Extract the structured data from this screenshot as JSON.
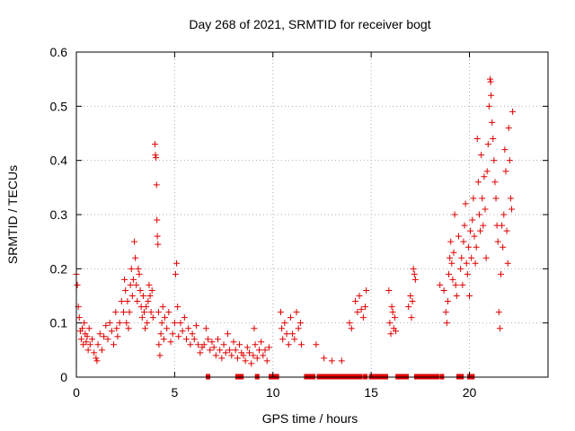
{
  "chart_data": {
    "type": "scatter",
    "title": "Day 268 of 2021, SRMTID for receiver bogt",
    "xlabel": "GPS time / hours",
    "ylabel": "SRMTID / TECUs",
    "xlim": [
      0,
      24
    ],
    "ylim": [
      0,
      0.6
    ],
    "xticks": [
      0,
      5,
      10,
      15,
      20
    ],
    "xtick_labels": [
      "0",
      "5",
      "10",
      "15",
      "20"
    ],
    "yticks": [
      0,
      0.1,
      0.2,
      0.3,
      0.4,
      0.5,
      0.6
    ],
    "ytick_labels": [
      "0",
      "0.1",
      "0.2",
      "0.3",
      "0.4",
      "0.5",
      "0.6"
    ],
    "grid": true,
    "marker": "plus",
    "color": "#e00000",
    "series": [
      {
        "name": "SRMTID",
        "points": [
          [
            0.0,
            0.19
          ],
          [
            0.05,
            0.17
          ],
          [
            0.1,
            0.13
          ],
          [
            0.15,
            0.11
          ],
          [
            0.2,
            0.085
          ],
          [
            0.25,
            0.07
          ],
          [
            0.3,
            0.09
          ],
          [
            0.35,
            0.06
          ],
          [
            0.4,
            0.1
          ],
          [
            0.45,
            0.08
          ],
          [
            0.5,
            0.065
          ],
          [
            0.55,
            0.075
          ],
          [
            0.6,
            0.05
          ],
          [
            0.65,
            0.09
          ],
          [
            0.7,
            0.06
          ],
          [
            0.8,
            0.07
          ],
          [
            0.9,
            0.045
          ],
          [
            1.0,
            0.035
          ],
          [
            1.05,
            0.03
          ],
          [
            1.1,
            0.06
          ],
          [
            1.2,
            0.08
          ],
          [
            1.3,
            0.05
          ],
          [
            1.4,
            0.075
          ],
          [
            1.5,
            0.095
          ],
          [
            1.6,
            0.07
          ],
          [
            1.7,
            0.1
          ],
          [
            1.8,
            0.085
          ],
          [
            1.9,
            0.06
          ],
          [
            2.0,
            0.12
          ],
          [
            2.05,
            0.09
          ],
          [
            2.1,
            0.075
          ],
          [
            2.2,
            0.1
          ],
          [
            2.3,
            0.14
          ],
          [
            2.4,
            0.12
          ],
          [
            2.45,
            0.18
          ],
          [
            2.5,
            0.16
          ],
          [
            2.55,
            0.1
          ],
          [
            2.6,
            0.14
          ],
          [
            2.65,
            0.09
          ],
          [
            2.7,
            0.12
          ],
          [
            2.75,
            0.17
          ],
          [
            2.8,
            0.2
          ],
          [
            2.85,
            0.15
          ],
          [
            2.9,
            0.18
          ],
          [
            2.95,
            0.25
          ],
          [
            3.0,
            0.22
          ],
          [
            3.05,
            0.17
          ],
          [
            3.1,
            0.14
          ],
          [
            3.15,
            0.2
          ],
          [
            3.2,
            0.19
          ],
          [
            3.25,
            0.16
          ],
          [
            3.3,
            0.13
          ],
          [
            3.35,
            0.11
          ],
          [
            3.4,
            0.15
          ],
          [
            3.45,
            0.12
          ],
          [
            3.5,
            0.09
          ],
          [
            3.55,
            0.13
          ],
          [
            3.6,
            0.1
          ],
          [
            3.65,
            0.14
          ],
          [
            3.7,
            0.17
          ],
          [
            3.75,
            0.15
          ],
          [
            3.8,
            0.12
          ],
          [
            3.85,
            0.16
          ],
          [
            3.9,
            0.11
          ],
          [
            4.0,
            0.43
          ],
          [
            4.02,
            0.41
          ],
          [
            4.05,
            0.405
          ],
          [
            4.08,
            0.355
          ],
          [
            4.1,
            0.29
          ],
          [
            4.12,
            0.26
          ],
          [
            4.15,
            0.245
          ],
          [
            4.18,
            0.12
          ],
          [
            4.2,
            0.06
          ],
          [
            4.25,
            0.04
          ],
          [
            4.3,
            0.08
          ],
          [
            4.35,
            0.1
          ],
          [
            4.4,
            0.13
          ],
          [
            4.45,
            0.07
          ],
          [
            4.5,
            0.11
          ],
          [
            4.6,
            0.09
          ],
          [
            4.7,
            0.12
          ],
          [
            4.8,
            0.065
          ],
          [
            4.9,
            0.08
          ],
          [
            5.0,
            0.1
          ],
          [
            5.05,
            0.19
          ],
          [
            5.1,
            0.21
          ],
          [
            5.15,
            0.13
          ],
          [
            5.2,
            0.075
          ],
          [
            5.3,
            0.1
          ],
          [
            5.4,
            0.085
          ],
          [
            5.5,
            0.11
          ],
          [
            5.6,
            0.07
          ],
          [
            5.7,
            0.09
          ],
          [
            5.8,
            0.06
          ],
          [
            5.9,
            0.08
          ],
          [
            6.0,
            0.07
          ],
          [
            6.1,
            0.095
          ],
          [
            6.2,
            0.06
          ],
          [
            6.3,
            0.045
          ],
          [
            6.4,
            0.055
          ],
          [
            6.5,
            0.06
          ],
          [
            6.6,
            0.09
          ],
          [
            6.7,
            0.07
          ],
          [
            6.8,
            0.05
          ],
          [
            6.9,
            0.065
          ],
          [
            7.0,
            0.055
          ],
          [
            7.1,
            0.04
          ],
          [
            7.2,
            0.07
          ],
          [
            7.3,
            0.05
          ],
          [
            7.4,
            0.035
          ],
          [
            7.5,
            0.06
          ],
          [
            7.6,
            0.045
          ],
          [
            7.7,
            0.08
          ],
          [
            7.8,
            0.05
          ],
          [
            7.9,
            0.04
          ],
          [
            8.0,
            0.065
          ],
          [
            8.1,
            0.05
          ],
          [
            8.2,
            0.035
          ],
          [
            8.3,
            0.06
          ],
          [
            8.4,
            0.045
          ],
          [
            8.5,
            0.04
          ],
          [
            8.6,
            0.03
          ],
          [
            8.7,
            0.055
          ],
          [
            8.8,
            0.045
          ],
          [
            8.9,
            0.025
          ],
          [
            9.0,
            0.04
          ],
          [
            9.05,
            0.09
          ],
          [
            9.1,
            0.06
          ],
          [
            9.2,
            0.035
          ],
          [
            9.3,
            0.05
          ],
          [
            9.4,
            0.065
          ],
          [
            9.5,
            0.04
          ],
          [
            9.6,
            0.05
          ],
          [
            9.7,
            0.03
          ],
          [
            9.8,
            0.055
          ],
          [
            10.4,
            0.12
          ],
          [
            10.45,
            0.09
          ],
          [
            10.5,
            0.07
          ],
          [
            10.6,
            0.1
          ],
          [
            10.7,
            0.08
          ],
          [
            10.8,
            0.06
          ],
          [
            10.9,
            0.11
          ],
          [
            11.0,
            0.08
          ],
          [
            11.1,
            0.07
          ],
          [
            11.2,
            0.12
          ],
          [
            11.3,
            0.09
          ],
          [
            11.4,
            0.1
          ],
          [
            11.45,
            0.06
          ],
          [
            12.2,
            0.06
          ],
          [
            12.6,
            0.035
          ],
          [
            13.0,
            0.03
          ],
          [
            13.5,
            0.03
          ],
          [
            13.9,
            0.1
          ],
          [
            14.0,
            0.09
          ],
          [
            14.2,
            0.14
          ],
          [
            14.3,
            0.12
          ],
          [
            14.4,
            0.15
          ],
          [
            14.5,
            0.125
          ],
          [
            14.6,
            0.11
          ],
          [
            14.7,
            0.13
          ],
          [
            14.75,
            0.16
          ],
          [
            15.9,
            0.16
          ],
          [
            15.95,
            0.1
          ],
          [
            16.0,
            0.08
          ],
          [
            16.05,
            0.13
          ],
          [
            16.1,
            0.12
          ],
          [
            16.15,
            0.09
          ],
          [
            16.2,
            0.11
          ],
          [
            16.25,
            0.085
          ],
          [
            16.9,
            0.13
          ],
          [
            17.0,
            0.15
          ],
          [
            17.05,
            0.11
          ],
          [
            17.1,
            0.14
          ],
          [
            17.15,
            0.2
          ],
          [
            17.2,
            0.19
          ],
          [
            17.25,
            0.18
          ],
          [
            18.5,
            0.17
          ],
          [
            18.7,
            0.16
          ],
          [
            18.8,
            0.12
          ],
          [
            18.85,
            0.1
          ],
          [
            18.9,
            0.14
          ],
          [
            18.95,
            0.19
          ],
          [
            19.0,
            0.22
          ],
          [
            19.05,
            0.25
          ],
          [
            19.1,
            0.21
          ],
          [
            19.15,
            0.18
          ],
          [
            19.2,
            0.23
          ],
          [
            19.25,
            0.3
          ],
          [
            19.3,
            0.17
          ],
          [
            19.35,
            0.15
          ],
          [
            19.45,
            0.26
          ],
          [
            19.55,
            0.2
          ],
          [
            19.6,
            0.22
          ],
          [
            19.65,
            0.17
          ],
          [
            19.7,
            0.25
          ],
          [
            19.75,
            0.28
          ],
          [
            19.8,
            0.32
          ],
          [
            19.85,
            0.21
          ],
          [
            19.9,
            0.19
          ],
          [
            19.95,
            0.24
          ],
          [
            20.0,
            0.15
          ],
          [
            20.05,
            0.27
          ],
          [
            20.1,
            0.22
          ],
          [
            20.15,
            0.29
          ],
          [
            20.2,
            0.33
          ],
          [
            20.25,
            0.26
          ],
          [
            20.3,
            0.21
          ],
          [
            20.35,
            0.24
          ],
          [
            20.4,
            0.44
          ],
          [
            20.45,
            0.36
          ],
          [
            20.5,
            0.3
          ],
          [
            20.55,
            0.27
          ],
          [
            20.6,
            0.41
          ],
          [
            20.65,
            0.33
          ],
          [
            20.7,
            0.28
          ],
          [
            20.75,
            0.37
          ],
          [
            20.8,
            0.31
          ],
          [
            20.85,
            0.22
          ],
          [
            20.9,
            0.38
          ],
          [
            20.95,
            0.43
          ],
          [
            21.0,
            0.5
          ],
          [
            21.05,
            0.55
          ],
          [
            21.08,
            0.545
          ],
          [
            21.1,
            0.52
          ],
          [
            21.15,
            0.47
          ],
          [
            21.2,
            0.44
          ],
          [
            21.25,
            0.4
          ],
          [
            21.3,
            0.36
          ],
          [
            21.35,
            0.33
          ],
          [
            21.4,
            0.28
          ],
          [
            21.45,
            0.25
          ],
          [
            21.5,
            0.12
          ],
          [
            21.55,
            0.09
          ],
          [
            21.6,
            0.19
          ],
          [
            21.65,
            0.28
          ],
          [
            21.7,
            0.24
          ],
          [
            21.75,
            0.3
          ],
          [
            21.8,
            0.42
          ],
          [
            21.85,
            0.38
          ],
          [
            21.9,
            0.27
          ],
          [
            21.95,
            0.21
          ],
          [
            22.0,
            0.46
          ],
          [
            22.05,
            0.4
          ],
          [
            22.1,
            0.33
          ],
          [
            22.15,
            0.31
          ],
          [
            22.2,
            0.49
          ]
        ],
        "baseline_points": [
          6.7,
          8.2,
          8.4,
          9.2,
          9.9,
          10.05,
          10.2,
          11.7,
          11.9,
          12.05,
          12.35,
          12.5,
          12.65,
          12.8,
          12.95,
          13.1,
          13.25,
          13.4,
          13.55,
          13.7,
          13.85,
          14.0,
          14.15,
          14.3,
          14.45,
          14.7,
          15.0,
          15.15,
          15.3,
          15.45,
          15.6,
          15.75,
          16.35,
          16.5,
          16.65,
          16.8,
          17.3,
          17.45,
          17.6,
          17.75,
          17.9,
          18.05,
          18.2,
          18.35,
          18.6,
          19.45,
          19.6,
          20.0,
          20.15
        ]
      }
    ]
  }
}
